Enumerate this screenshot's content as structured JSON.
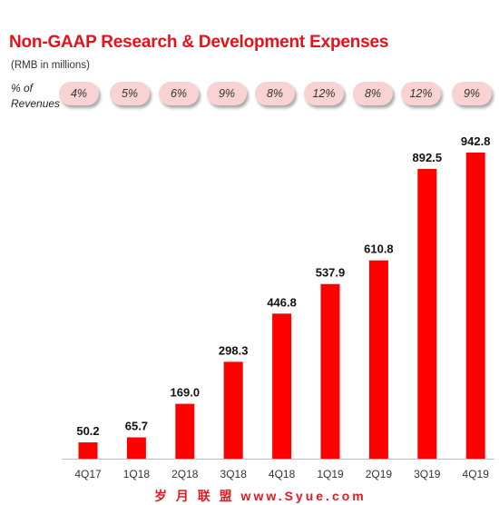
{
  "header": {
    "title": "Non-GAAP Research & Development Expenses",
    "subtitle": "(RMB in millions)",
    "pct_label": "% of\nRevenues"
  },
  "percent_of_revenues": [
    "4%",
    "5%",
    "6%",
    "9%",
    "8%",
    "12%",
    "8%",
    "12%",
    "9%"
  ],
  "watermark": "岁 月 联 盟  www.Syue.com",
  "colors": {
    "bar": "#ff0000",
    "title": "#e8101a",
    "pill": "#f9d3d3"
  },
  "chart_data": {
    "type": "bar",
    "title": "Non-GAAP Research & Development Expenses",
    "ylabel": "RMB in millions",
    "categories": [
      "4Q17",
      "1Q18",
      "2Q18",
      "3Q18",
      "4Q18",
      "1Q19",
      "2Q19",
      "3Q19",
      "4Q19"
    ],
    "values": [
      50.2,
      65.7,
      169.0,
      298.3,
      446.8,
      537.9,
      610.8,
      892.5,
      942.8
    ],
    "value_labels": [
      "50.2",
      "65.7",
      "169.0",
      "298.3",
      "446.8",
      "537.9",
      "610.8",
      "892.5",
      "942.8"
    ],
    "ylim": [
      0,
      942.8
    ],
    "grid": false,
    "legend": "none"
  }
}
